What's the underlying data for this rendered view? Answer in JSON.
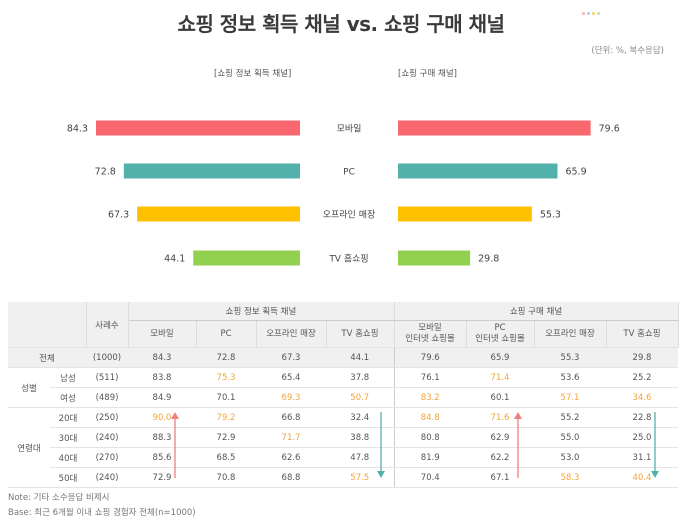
{
  "title": "쇼핑 정보 획득 채널 vs. 쇼핑 구매 채널",
  "unit": "(단위: %, 복수응답)",
  "colors": {
    "mobile": "#f9676f",
    "pc": "#52b2ab",
    "offline": "#ffc000",
    "tv": "#92d050",
    "highlight": "#f2a43a",
    "arrow_up": "#f28080",
    "arrow_down": "#52b2ab"
  },
  "chart_data": {
    "type": "bar",
    "orientation": "horizontal-butterfly",
    "categories": [
      "모바일",
      "PC",
      "오프라인 매장",
      "TV 홈쇼핑"
    ],
    "series": [
      {
        "name": "[쇼핑 정보 획득 채널]",
        "values": [
          84.3,
          72.8,
          67.3,
          44.1
        ]
      },
      {
        "name": "[쇼핑 구매 채널]",
        "values": [
          79.6,
          65.9,
          55.3,
          29.8
        ]
      }
    ],
    "xlim": [
      0,
      100
    ]
  },
  "table": {
    "respondents_header": "사례수",
    "group_info": "쇼핑 정보 획득 채널",
    "group_buy": "쇼핑 구매 채널",
    "info_cols": [
      "모바일",
      "PC",
      "오프라인 매장",
      "TV 홈쇼핑"
    ],
    "buy_cols": [
      [
        "모바일",
        "인터넷 쇼핑몰"
      ],
      [
        "PC",
        "인터넷 쇼핑몰"
      ],
      [
        "오프라인 매장"
      ],
      [
        "TV 홈쇼핑"
      ]
    ],
    "rows": [
      {
        "group": "전체",
        "label": "",
        "n": "(1000)",
        "values": [
          "84.3",
          "72.8",
          "67.3",
          "44.1",
          "79.6",
          "65.9",
          "55.3",
          "29.8"
        ],
        "hl": []
      },
      {
        "group": "성별",
        "label": "남성",
        "n": "(511)",
        "values": [
          "83.8",
          "75.3",
          "65.4",
          "37.8",
          "76.1",
          "71.4",
          "53.6",
          "25.2"
        ],
        "hl": [
          1,
          5
        ]
      },
      {
        "group": "",
        "label": "여성",
        "n": "(489)",
        "values": [
          "84.9",
          "70.1",
          "69.3",
          "50.7",
          "83.2",
          "60.1",
          "57.1",
          "34.6"
        ],
        "hl": [
          2,
          3,
          4,
          6,
          7
        ]
      },
      {
        "group": "연령대",
        "label": "20대",
        "n": "(250)",
        "values": [
          "90.0",
          "79.2",
          "66.8",
          "32.4",
          "84.8",
          "71.6",
          "55.2",
          "22.8"
        ],
        "hl": [
          0,
          1,
          4,
          5
        ]
      },
      {
        "group": "",
        "label": "30대",
        "n": "(240)",
        "values": [
          "88.3",
          "72.9",
          "71.7",
          "38.8",
          "80.8",
          "62.9",
          "55.0",
          "25.0"
        ],
        "hl": [
          2
        ]
      },
      {
        "group": "",
        "label": "40대",
        "n": "(270)",
        "values": [
          "85.6",
          "68.5",
          "62.6",
          "47.8",
          "81.9",
          "62.2",
          "53.0",
          "31.1"
        ],
        "hl": []
      },
      {
        "group": "",
        "label": "50대",
        "n": "(240)",
        "values": [
          "72.9",
          "70.8",
          "68.8",
          "57.5",
          "70.4",
          "67.1",
          "58.3",
          "40.4"
        ],
        "hl": [
          3,
          6,
          7
        ]
      }
    ]
  },
  "notes": {
    "note": "Note: 기타 소수응답 비제시",
    "base": "Base: 최근 6개월 이내 쇼핑 경험자 전체(n=1000)"
  }
}
